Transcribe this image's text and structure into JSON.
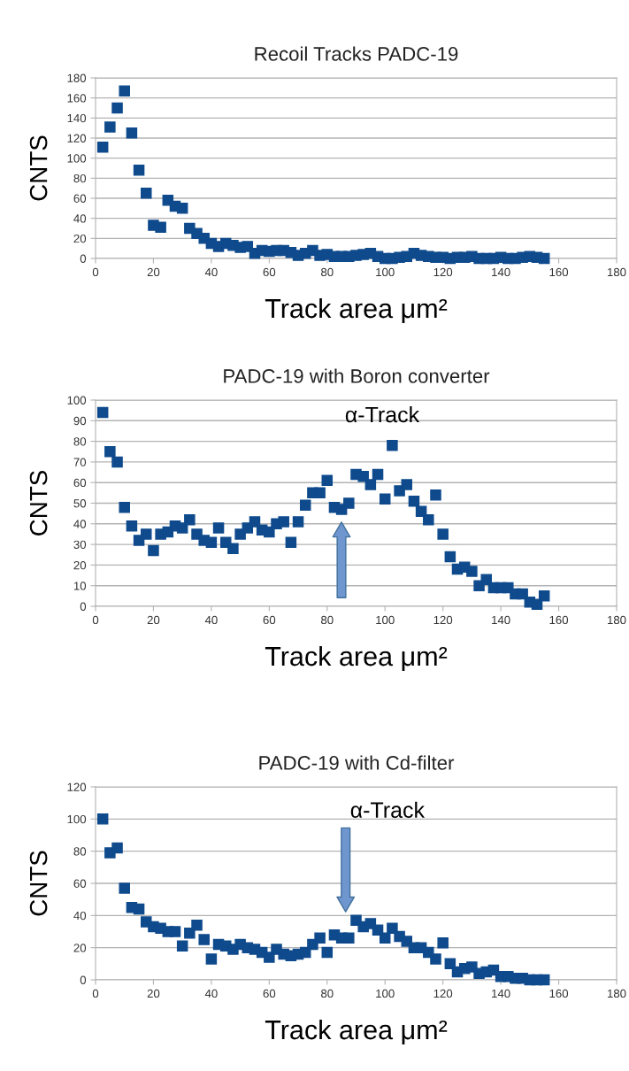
{
  "chart_data": [
    {
      "type": "scatter",
      "title": "Recoil Tracks PADC-19",
      "xlabel": "Track area μm²",
      "ylabel": "CNTS",
      "marker": "square",
      "grid": "y",
      "legend": false,
      "xlim": [
        0,
        180
      ],
      "xticks": [
        0,
        20,
        40,
        60,
        80,
        100,
        120,
        140,
        160,
        180
      ],
      "ylim": [
        0,
        180
      ],
      "yticks": [
        0,
        20,
        40,
        60,
        80,
        100,
        120,
        140,
        160,
        180
      ],
      "x": [
        2.5,
        5,
        7.5,
        10,
        12.5,
        15,
        17.5,
        20,
        22.5,
        25,
        27.5,
        30,
        32.5,
        35,
        37.5,
        40,
        42.5,
        45,
        47.5,
        50,
        52.5,
        55,
        57.5,
        60,
        62.5,
        65,
        67.5,
        70,
        72.5,
        75,
        77.5,
        80,
        82.5,
        85,
        87.5,
        90,
        92.5,
        95,
        97.5,
        100,
        102.5,
        105,
        107.5,
        110,
        112.5,
        115,
        117.5,
        120,
        122.5,
        125,
        127.5,
        130,
        132.5,
        135,
        137.5,
        140,
        142.5,
        145,
        147.5,
        150,
        152.5,
        155
      ],
      "series": [
        {
          "color": "#0e4a8c",
          "values": [
            111,
            131,
            150,
            167,
            125,
            88,
            65,
            33,
            31,
            58,
            52,
            50,
            30,
            25,
            20,
            15,
            12,
            15,
            13,
            11,
            12,
            5,
            8,
            7,
            8,
            8,
            6,
            3,
            5,
            8,
            3,
            4,
            2,
            2,
            2,
            3,
            4,
            5,
            2,
            0,
            0,
            1,
            2,
            5,
            3,
            2,
            1,
            1,
            0,
            1,
            1,
            2,
            0,
            0,
            0,
            1,
            0,
            0,
            1,
            2,
            1,
            0
          ]
        }
      ]
    },
    {
      "type": "scatter",
      "title": "PADC-19 with Boron converter",
      "xlabel": "Track area μm²",
      "ylabel": "CNTS",
      "marker": "square",
      "grid": "y",
      "legend": false,
      "xlim": [
        0,
        180
      ],
      "xticks": [
        0,
        20,
        40,
        60,
        80,
        100,
        120,
        140,
        160,
        180
      ],
      "ylim": [
        0,
        100
      ],
      "yticks": [
        0,
        10,
        20,
        30,
        40,
        50,
        60,
        70,
        80,
        90,
        100
      ],
      "annotations": [
        "α-Track"
      ],
      "x": [
        2.5,
        5,
        7.5,
        10,
        12.5,
        15,
        17.5,
        20,
        22.5,
        25,
        27.5,
        30,
        32.5,
        35,
        37.5,
        40,
        42.5,
        45,
        47.5,
        50,
        52.5,
        55,
        57.5,
        60,
        62.5,
        65,
        67.5,
        70,
        72.5,
        75,
        77.5,
        80,
        82.5,
        85,
        87.5,
        90,
        92.5,
        95,
        97.5,
        100,
        102.5,
        105,
        107.5,
        110,
        112.5,
        115,
        117.5,
        120,
        122.5,
        125,
        127.5,
        130,
        132.5,
        135,
        137.5,
        140,
        142.5,
        145,
        147.5,
        150,
        152.5,
        155
      ],
      "series": [
        {
          "color": "#0e4a8c",
          "values": [
            94,
            75,
            70,
            48,
            39,
            32,
            35,
            27,
            35,
            36,
            39,
            38,
            42,
            35,
            32,
            31,
            38,
            31,
            28,
            35,
            38,
            41,
            37,
            36,
            40,
            41,
            31,
            41,
            49,
            55,
            55,
            61,
            48,
            47,
            50,
            64,
            63,
            59,
            64,
            52,
            78,
            56,
            59,
            51,
            46,
            42,
            54,
            35,
            24,
            18,
            19,
            17,
            10,
            13,
            9,
            9,
            9,
            6,
            6,
            2,
            1,
            5
          ]
        }
      ]
    },
    {
      "type": "scatter",
      "title": "PADC-19 with Cd-filter",
      "xlabel": "Track area μm²",
      "ylabel": "CNTS",
      "marker": "square",
      "grid": "y",
      "legend": false,
      "xlim": [
        0,
        180
      ],
      "xticks": [
        0,
        20,
        40,
        60,
        80,
        100,
        120,
        140,
        160,
        180
      ],
      "ylim": [
        0,
        120
      ],
      "yticks": [
        0,
        20,
        40,
        60,
        80,
        100,
        120
      ],
      "annotations": [
        "α-Track"
      ],
      "x": [
        2.5,
        5,
        7.5,
        10,
        12.5,
        15,
        17.5,
        20,
        22.5,
        25,
        27.5,
        30,
        32.5,
        35,
        37.5,
        40,
        42.5,
        45,
        47.5,
        50,
        52.5,
        55,
        57.5,
        60,
        62.5,
        65,
        67.5,
        70,
        72.5,
        75,
        77.5,
        80,
        82.5,
        85,
        87.5,
        90,
        92.5,
        95,
        97.5,
        100,
        102.5,
        105,
        107.5,
        110,
        112.5,
        115,
        117.5,
        120,
        122.5,
        125,
        127.5,
        130,
        132.5,
        135,
        137.5,
        140,
        142.5,
        145,
        147.5,
        150,
        152.5,
        155
      ],
      "series": [
        {
          "color": "#0e4a8c",
          "values": [
            100,
            79,
            82,
            57,
            45,
            44,
            36,
            33,
            32,
            30,
            30,
            21,
            29,
            34,
            25,
            13,
            22,
            21,
            19,
            22,
            20,
            19,
            17,
            14,
            19,
            16,
            15,
            16,
            17,
            22,
            26,
            17,
            28,
            26,
            26,
            37,
            33,
            35,
            31,
            26,
            32,
            27,
            24,
            20,
            20,
            17,
            13,
            23,
            10,
            5,
            7,
            8,
            4,
            5,
            6,
            2,
            2,
            1,
            1,
            0,
            0,
            0
          ]
        }
      ]
    }
  ]
}
